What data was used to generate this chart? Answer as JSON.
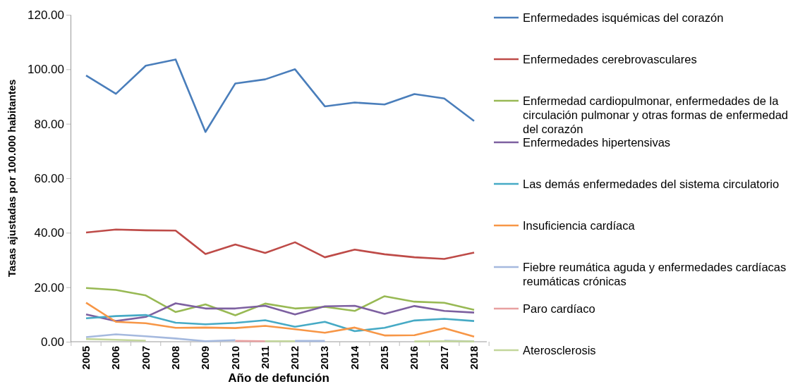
{
  "chart_data": {
    "type": "line",
    "xlabel": "Año de defunción",
    "ylabel": "Tasas ajustadas por 100.000 habitantes",
    "categories": [
      "2005",
      "2006",
      "2007",
      "2008",
      "2009",
      "2010",
      "2011",
      "2012",
      "2013",
      "2014",
      "2015",
      "2016",
      "2017",
      "2018"
    ],
    "ylim": [
      0,
      120
    ],
    "yticks": [
      {
        "value": 0,
        "label": "0.00"
      },
      {
        "value": 20,
        "label": "20.00"
      },
      {
        "value": 40,
        "label": "40.00"
      },
      {
        "value": 60,
        "label": "60.00"
      },
      {
        "value": 80,
        "label": "80.00"
      },
      {
        "value": 100,
        "label": "100.00"
      },
      {
        "value": 120,
        "label": "120.00"
      }
    ],
    "grid": false,
    "legend": "right",
    "marker": "none",
    "line_style": "solid",
    "series": [
      {
        "name": "Enfermedades isquémicas del corazón",
        "color": "#4a7ebb",
        "values": [
          97.7,
          91.0,
          101.3,
          103.6,
          77.0,
          94.8,
          96.3,
          100.0,
          86.4,
          87.8,
          87.1,
          90.9,
          89.3,
          81.0
        ]
      },
      {
        "name": "Enfermedades cerebrovasculares",
        "color": "#be4b48",
        "values": [
          40.1,
          41.2,
          40.9,
          40.8,
          32.2,
          35.7,
          32.6,
          36.5,
          31.0,
          33.8,
          32.1,
          31.0,
          30.4,
          32.7
        ]
      },
      {
        "name": "Enfermedad cardiopulmonar, enfermedades de la circulación pulmonar y otras formas de enfermedad del corazón",
        "color": "#98b954",
        "values": [
          19.7,
          19.0,
          17.0,
          10.9,
          13.7,
          9.7,
          14.0,
          12.2,
          12.8,
          11.3,
          16.7,
          14.7,
          14.3,
          11.7
        ]
      },
      {
        "name": "Enfermedades hipertensivas",
        "color": "#7d60a0",
        "values": [
          10.0,
          7.6,
          9.1,
          14.1,
          12.2,
          12.2,
          13.2,
          10.0,
          13.0,
          13.2,
          10.2,
          13.1,
          11.3,
          10.7
        ]
      },
      {
        "name": "Las demás enfermedades del sistema circulatorio",
        "color": "#46aac5",
        "values": [
          8.6,
          9.4,
          9.8,
          7.0,
          6.4,
          6.9,
          7.9,
          5.5,
          7.3,
          3.9,
          5.1,
          7.8,
          8.4,
          7.6
        ]
      },
      {
        "name": "Insuficiencia cardíaca",
        "color": "#f79646",
        "values": [
          14.3,
          7.3,
          6.8,
          5.1,
          5.2,
          5.0,
          5.8,
          4.6,
          3.3,
          5.2,
          2.3,
          2.4,
          5.0,
          1.9
        ]
      },
      {
        "name": "Fiebre reumática aguda y enfermedades cardíacas reumáticas crónicas",
        "color": "#a5b9de",
        "values": [
          1.7,
          2.7,
          2.0,
          1.2,
          0.2,
          0.6,
          null,
          0.3,
          0.3,
          null,
          null,
          null,
          0.4,
          0.1
        ]
      },
      {
        "name": "Paro cardíaco",
        "color": "#e8a0a0",
        "values": [
          null,
          null,
          null,
          null,
          null,
          0.3,
          0.2,
          null,
          null,
          null,
          null,
          null,
          null,
          null
        ]
      },
      {
        "name": "Aterosclerosis",
        "color": "#c3d69b",
        "values": [
          1.0,
          0.7,
          0.4,
          null,
          null,
          null,
          0.2,
          0.2,
          null,
          null,
          null,
          0.1,
          0.2,
          0.1
        ]
      }
    ]
  }
}
